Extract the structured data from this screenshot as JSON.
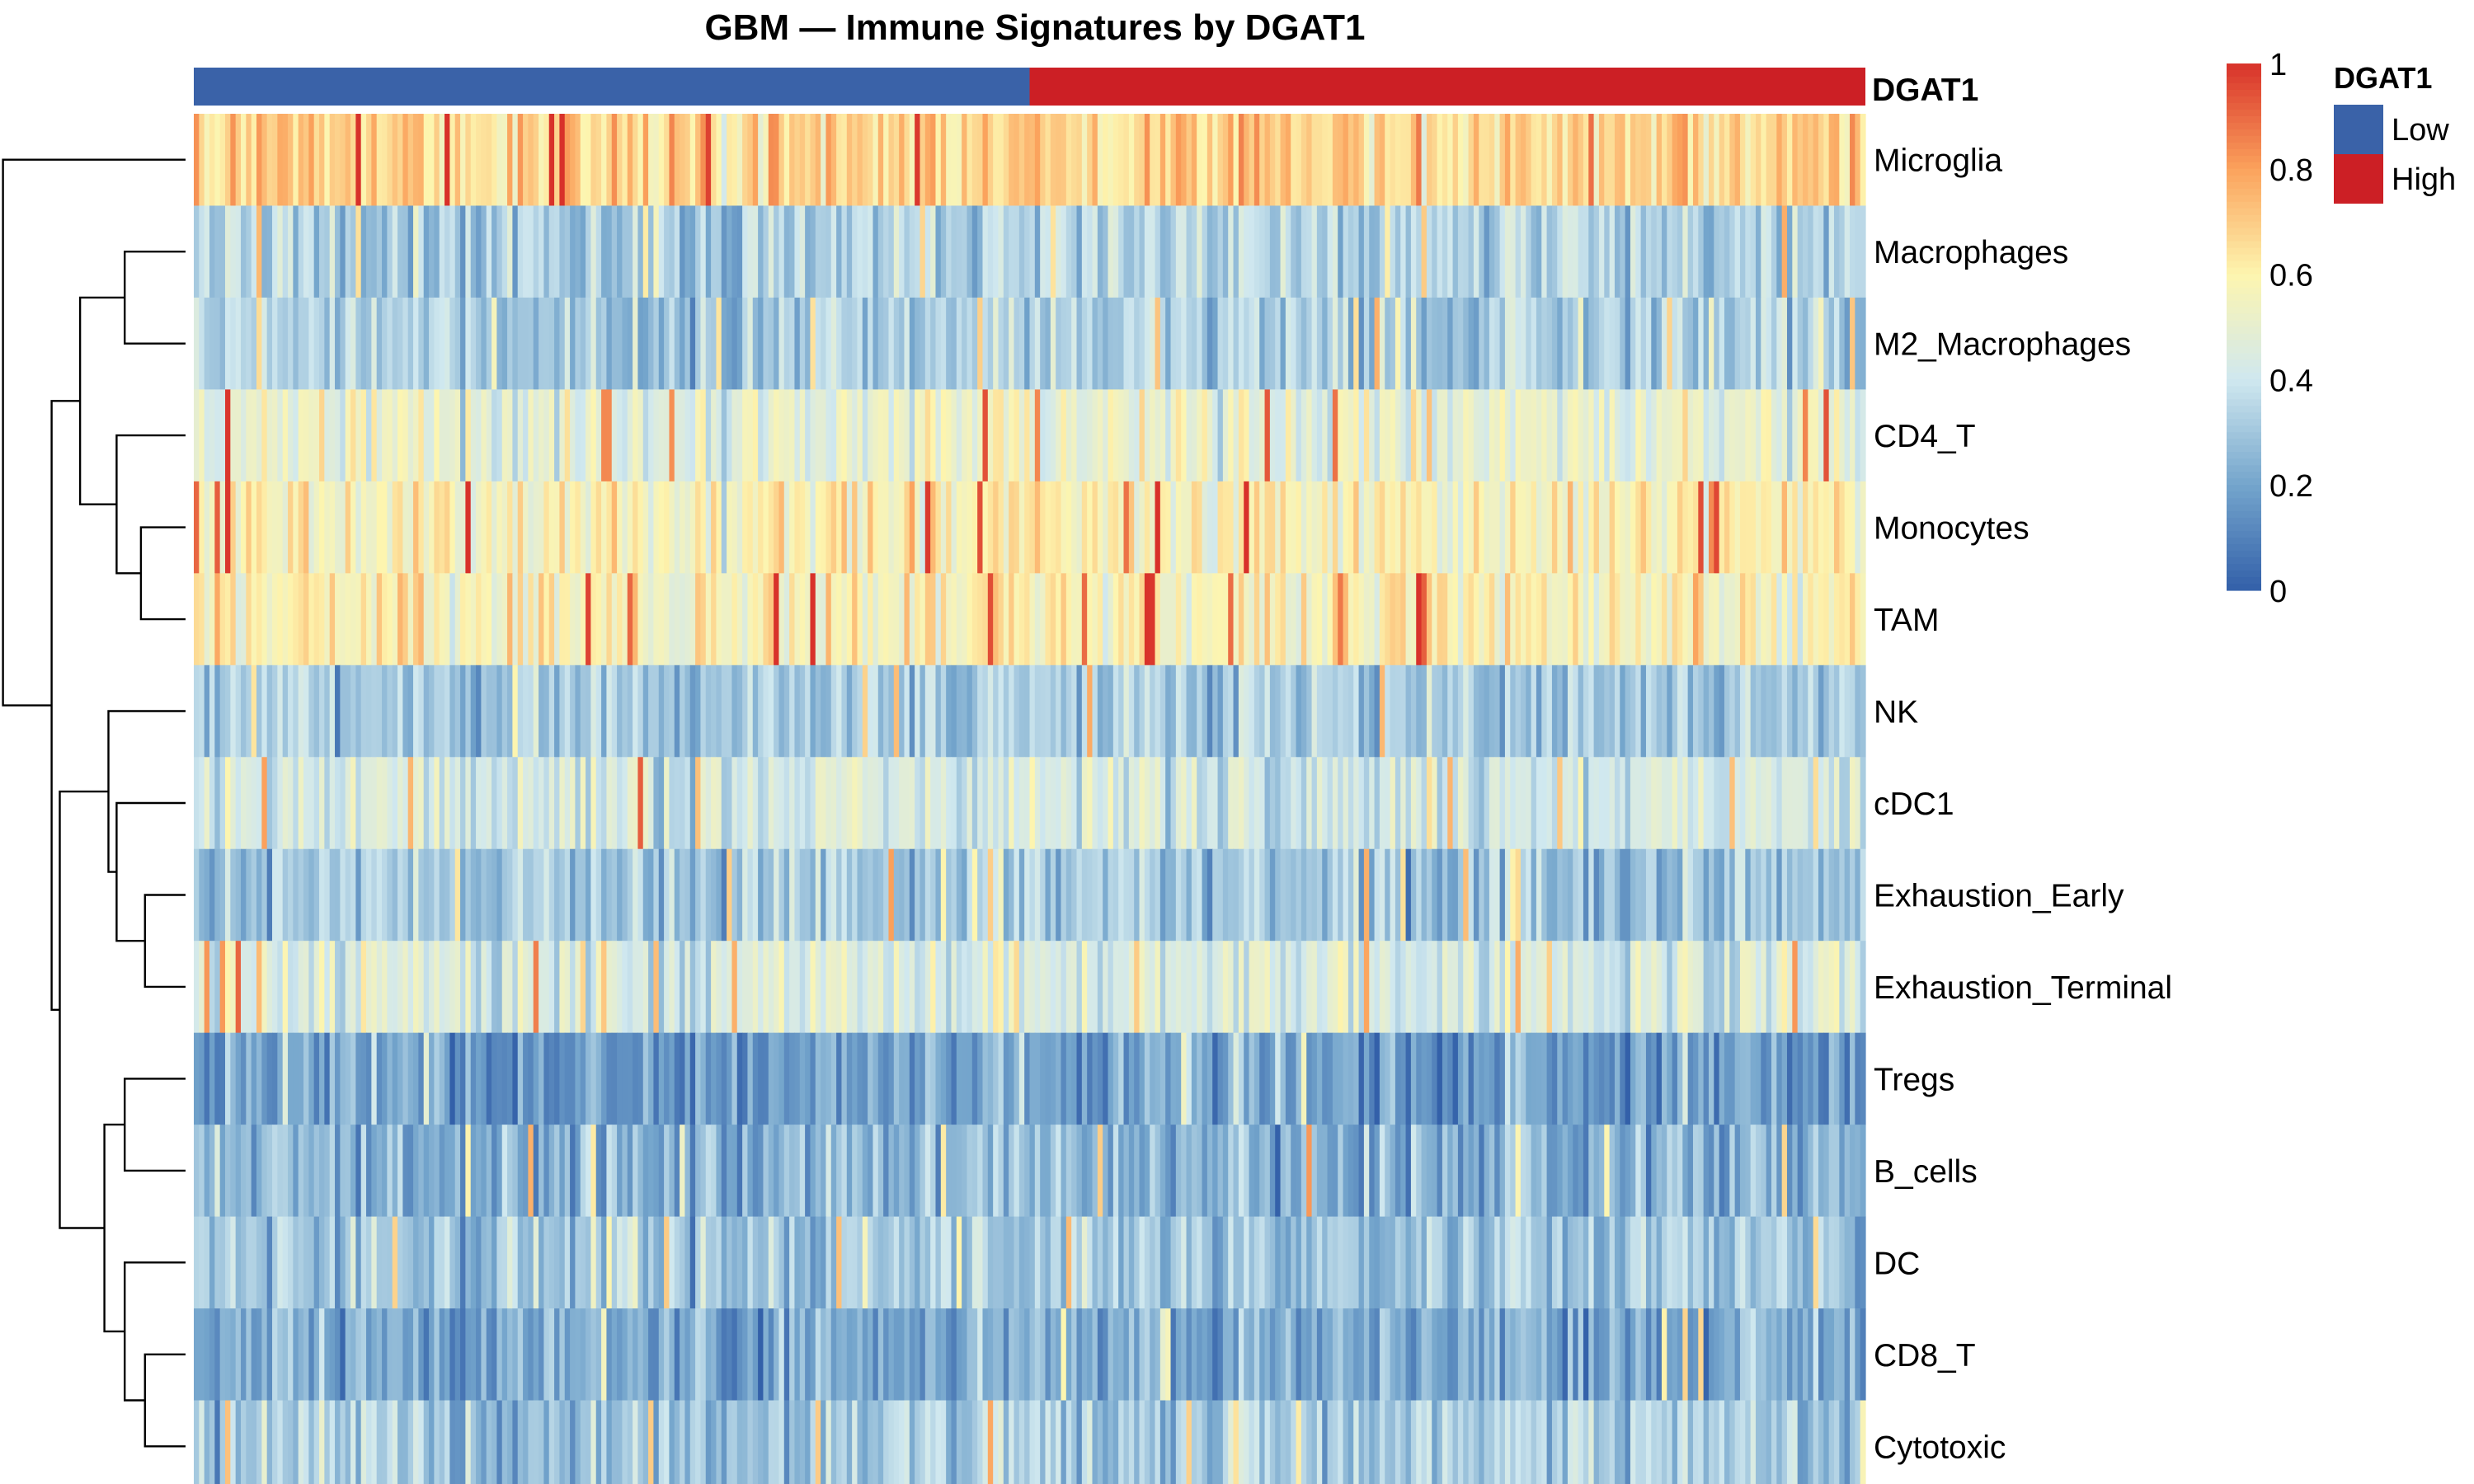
{
  "chart_data": {
    "type": "heatmap",
    "title": "GBM — Immune Signatures by DGAT1",
    "rows": [
      "Microglia",
      "Macrophages",
      "M2_Macrophages",
      "CD4_T",
      "Monocytes",
      "TAM",
      "NK",
      "cDC1",
      "Exhaustion_Early",
      "Exhaustion_Terminal",
      "Tregs",
      "B_cells",
      "DC",
      "CD8_T",
      "Cytotoxic"
    ],
    "row_means": [
      0.68,
      0.33,
      0.32,
      0.5,
      0.58,
      0.58,
      0.31,
      0.43,
      0.3,
      0.44,
      0.18,
      0.24,
      0.3,
      0.22,
      0.31
    ],
    "n_columns": 320,
    "n_low": 160,
    "value_range": [
      0,
      1
    ],
    "annotation": {
      "name": "DGAT1",
      "groups": [
        {
          "name": "Low",
          "color": "#3A62A8"
        },
        {
          "name": "High",
          "color": "#CC1F25"
        }
      ]
    },
    "colorbar": {
      "ticks": [
        "0",
        "0.2",
        "0.4",
        "0.6",
        "0.8",
        "1"
      ],
      "colors": [
        "#3360A9",
        "#74A5CC",
        "#D0E8EF",
        "#FDF5AF",
        "#FBA25C",
        "#D8312A"
      ]
    },
    "row_dendrogram": true
  }
}
